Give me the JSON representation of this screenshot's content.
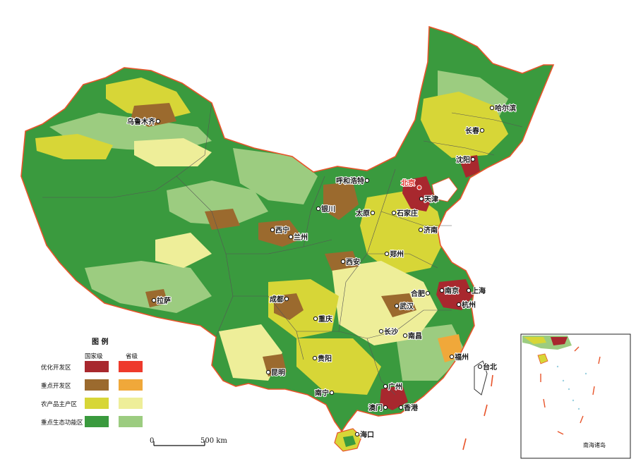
{
  "legend": {
    "title": "图 例",
    "col_national": "国家级",
    "col_provincial": "省级",
    "rows": [
      {
        "label": "优化开发区",
        "national": "#a8282e",
        "provincial": "#ee3a2c"
      },
      {
        "label": "重点开发区",
        "national": "#9b6a2e",
        "provincial": "#f0a83a"
      },
      {
        "label": "农产品主产区",
        "national": "#d7d637",
        "provincial": "#eeee99"
      },
      {
        "label": "重点生态功能区",
        "national": "#3a9a3e",
        "provincial": "#9ccc80"
      }
    ]
  },
  "scale": {
    "zero": "0",
    "length": "500 km"
  },
  "inset_label": "南海诸岛",
  "capital": "北京",
  "cities": [
    "乌鲁木齐",
    "哈尔滨",
    "长春",
    "沈阳",
    "呼和浩特",
    "天津",
    "银川",
    "太原",
    "石家庄",
    "西宁",
    "兰州",
    "济南",
    "郑州",
    "西安",
    "拉萨",
    "成都",
    "南京",
    "上海",
    "合肥",
    "杭州",
    "武汉",
    "重庆",
    "长沙",
    "南昌",
    "贵阳",
    "昆明",
    "福州",
    "台北",
    "南宁",
    "广州",
    "澳门",
    "香港",
    "海口"
  ],
  "colors": {
    "border": "#e8542a",
    "province_line": "#555555",
    "eco": "#3a9a3e",
    "eco_light": "#9ccc80",
    "agri": "#d7d637",
    "agri_light": "#eeee99",
    "key_dev": "#9b6a2e",
    "opt_dev": "#a8282e"
  }
}
